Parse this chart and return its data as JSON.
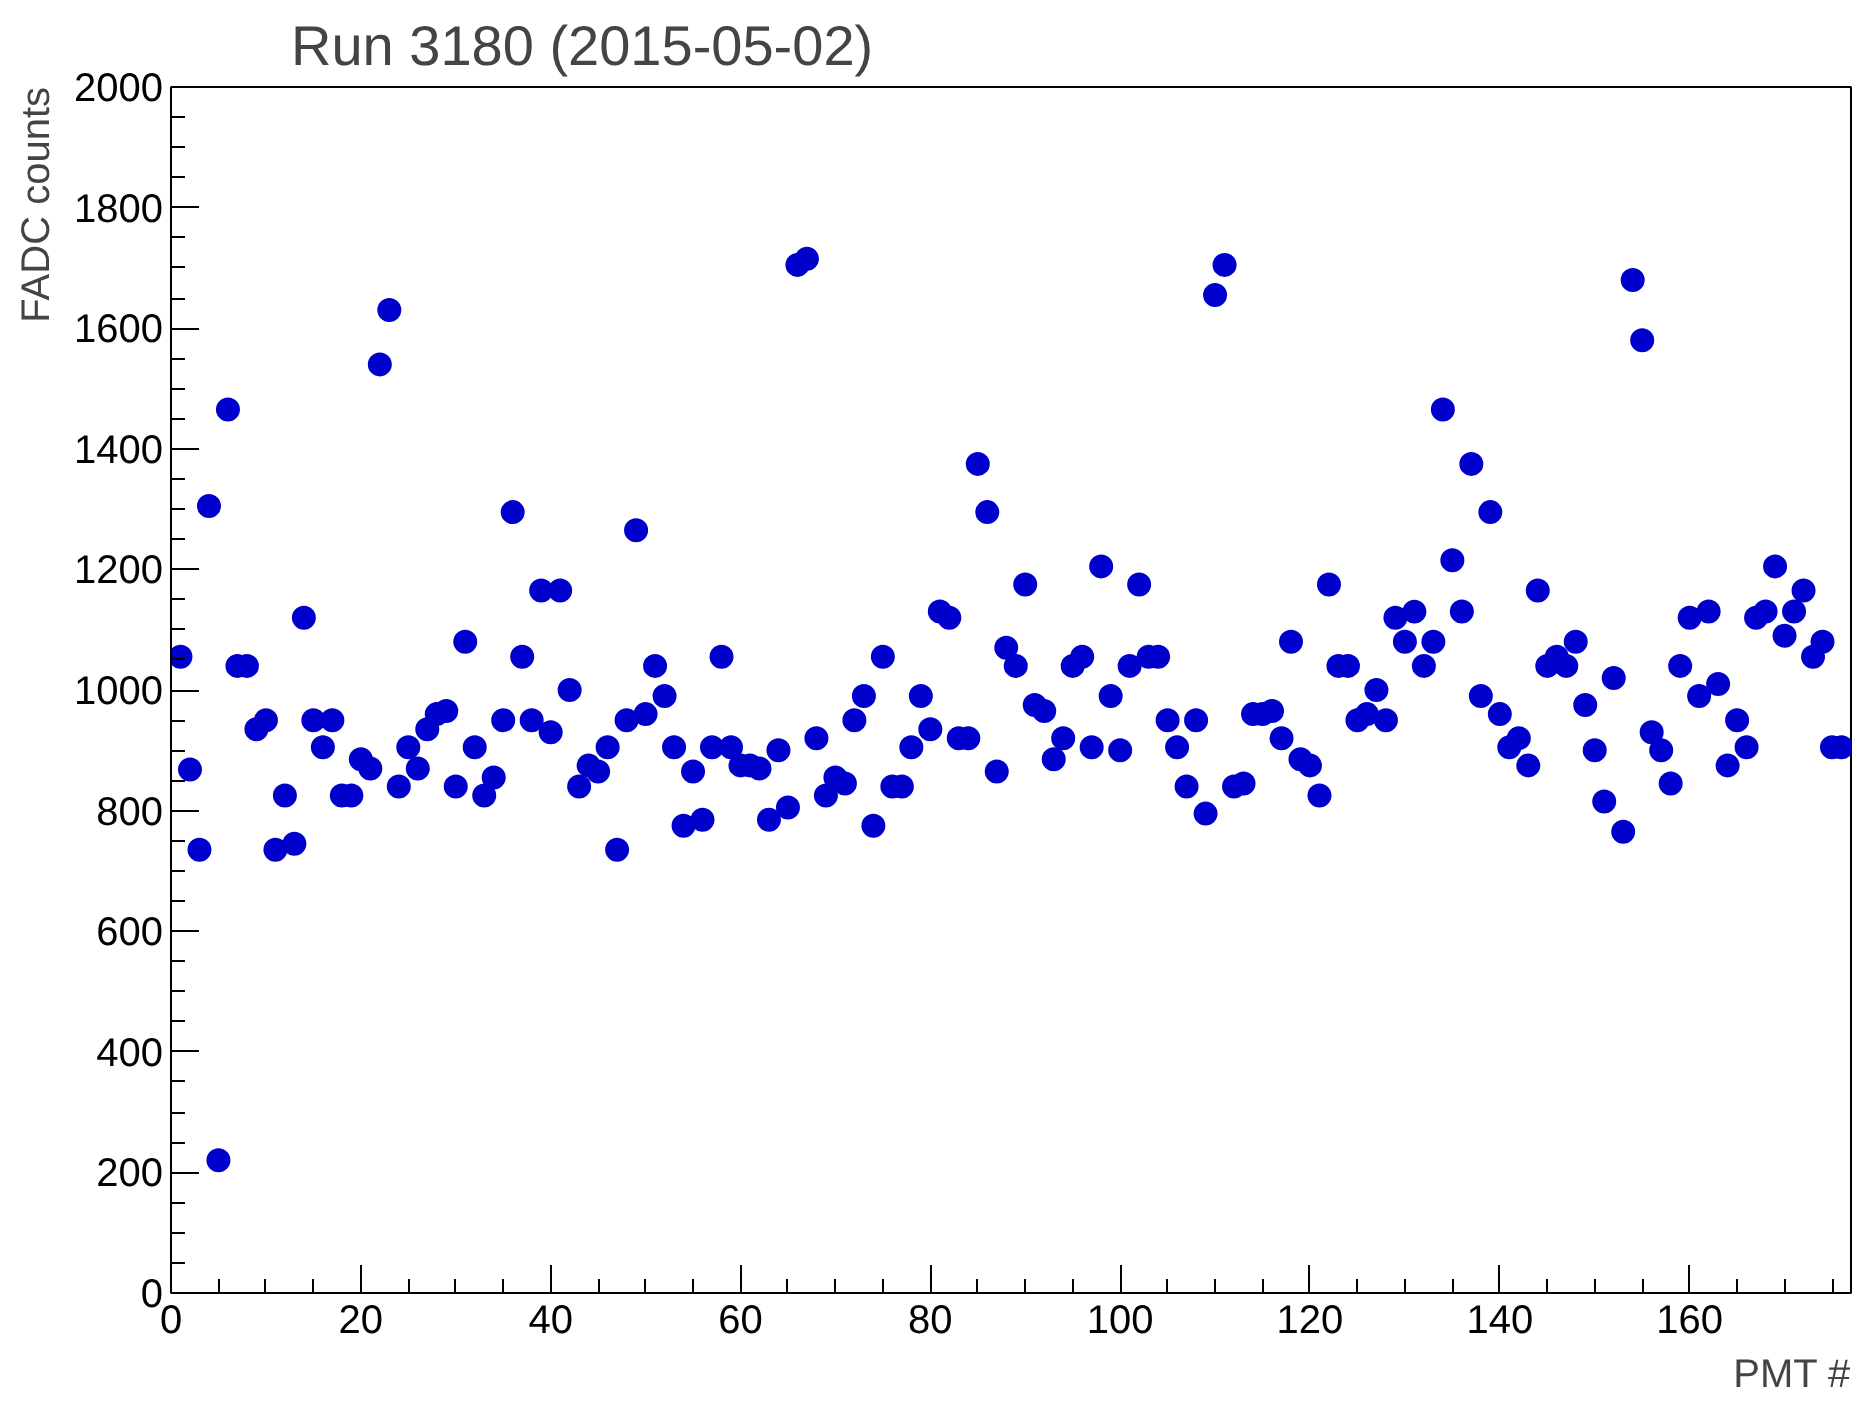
{
  "chart_data": {
    "type": "scatter",
    "title": "Run 3180 (2015-05-02)",
    "xlabel": "PMT #",
    "ylabel": "FADC counts",
    "x": [
      1,
      2,
      3,
      4,
      5,
      6,
      7,
      8,
      9,
      10,
      11,
      12,
      13,
      14,
      15,
      16,
      17,
      18,
      19,
      20,
      21,
      22,
      23,
      24,
      25,
      26,
      27,
      28,
      29,
      30,
      31,
      32,
      33,
      34,
      35,
      36,
      37,
      38,
      39,
      40,
      41,
      42,
      43,
      44,
      45,
      46,
      47,
      48,
      49,
      50,
      51,
      52,
      53,
      54,
      55,
      56,
      57,
      58,
      59,
      60,
      61,
      62,
      63,
      64,
      65,
      66,
      67,
      68,
      69,
      70,
      71,
      72,
      73,
      74,
      75,
      76,
      77,
      78,
      79,
      80,
      81,
      82,
      83,
      84,
      85,
      86,
      87,
      88,
      89,
      90,
      91,
      92,
      93,
      94,
      95,
      96,
      97,
      98,
      99,
      100,
      101,
      102,
      103,
      104,
      105,
      106,
      107,
      108,
      109,
      110,
      111,
      112,
      113,
      114,
      115,
      116,
      117,
      118,
      119,
      120,
      121,
      122,
      123,
      124,
      125,
      126,
      127,
      128,
      129,
      130,
      131,
      132,
      133,
      134,
      135,
      136,
      137,
      138,
      139,
      140,
      141,
      142,
      143,
      144,
      145,
      146,
      147,
      148,
      149,
      150,
      151,
      152,
      153,
      154,
      155,
      156,
      157,
      158,
      159,
      160,
      161,
      162,
      163,
      164,
      165,
      166,
      167,
      168,
      169,
      170,
      171,
      172,
      173,
      174,
      175,
      176
    ],
    "series": [
      {
        "color": "#0000cc",
        "values": [
          1055,
          868,
          735,
          1305,
          220,
          1465,
          1040,
          1040,
          935,
          950,
          735,
          825,
          745,
          1120,
          950,
          905,
          950,
          825,
          825,
          885,
          870,
          1540,
          1630,
          840,
          905,
          870,
          935,
          960,
          965,
          840,
          1080,
          905,
          825,
          855,
          950,
          1295,
          1055,
          950,
          1165,
          930,
          1165,
          1000,
          840,
          875,
          865,
          905,
          735,
          950,
          1265,
          960,
          1040,
          990,
          905,
          775,
          865,
          785,
          905,
          1055,
          905,
          875,
          875,
          870,
          785,
          900,
          805,
          1705,
          1715,
          920,
          825,
          855,
          845,
          950,
          990,
          775,
          1055,
          840,
          840,
          905,
          990,
          935,
          1130,
          1120,
          920,
          920,
          1375,
          1295,
          865,
          1070,
          1040,
          1175,
          975,
          965,
          885,
          920,
          1040,
          1055,
          905,
          1205,
          990,
          900,
          1040,
          1175,
          1055,
          1055,
          950,
          905,
          840,
          950,
          795,
          1655,
          1705,
          840,
          845,
          960,
          960,
          965,
          920,
          1080,
          885,
          875,
          825,
          1175,
          1040,
          1040,
          950,
          960,
          1000,
          950,
          1120,
          1080,
          1130,
          1040,
          1080,
          1465,
          1215,
          1130,
          1375,
          990,
          1295,
          960,
          905,
          920,
          875,
          1165,
          1040,
          1055,
          1040,
          1080,
          975,
          900,
          815,
          1020,
          765,
          1680,
          1580,
          930,
          900,
          845,
          1040,
          1120,
          990,
          1130,
          1010,
          875,
          950,
          905,
          1120,
          1130,
          1205,
          1090,
          1130,
          1165,
          1055,
          1080,
          905,
          905
        ]
      }
    ],
    "xlim": [
      0,
      177
    ],
    "ylim": [
      0,
      2000
    ],
    "xticks": [
      0,
      20,
      40,
      60,
      80,
      100,
      120,
      140,
      160
    ],
    "yticks": [
      0,
      200,
      400,
      600,
      800,
      1000,
      1200,
      1400,
      1600,
      1800,
      2000
    ],
    "grid": false,
    "marker": "circle"
  }
}
